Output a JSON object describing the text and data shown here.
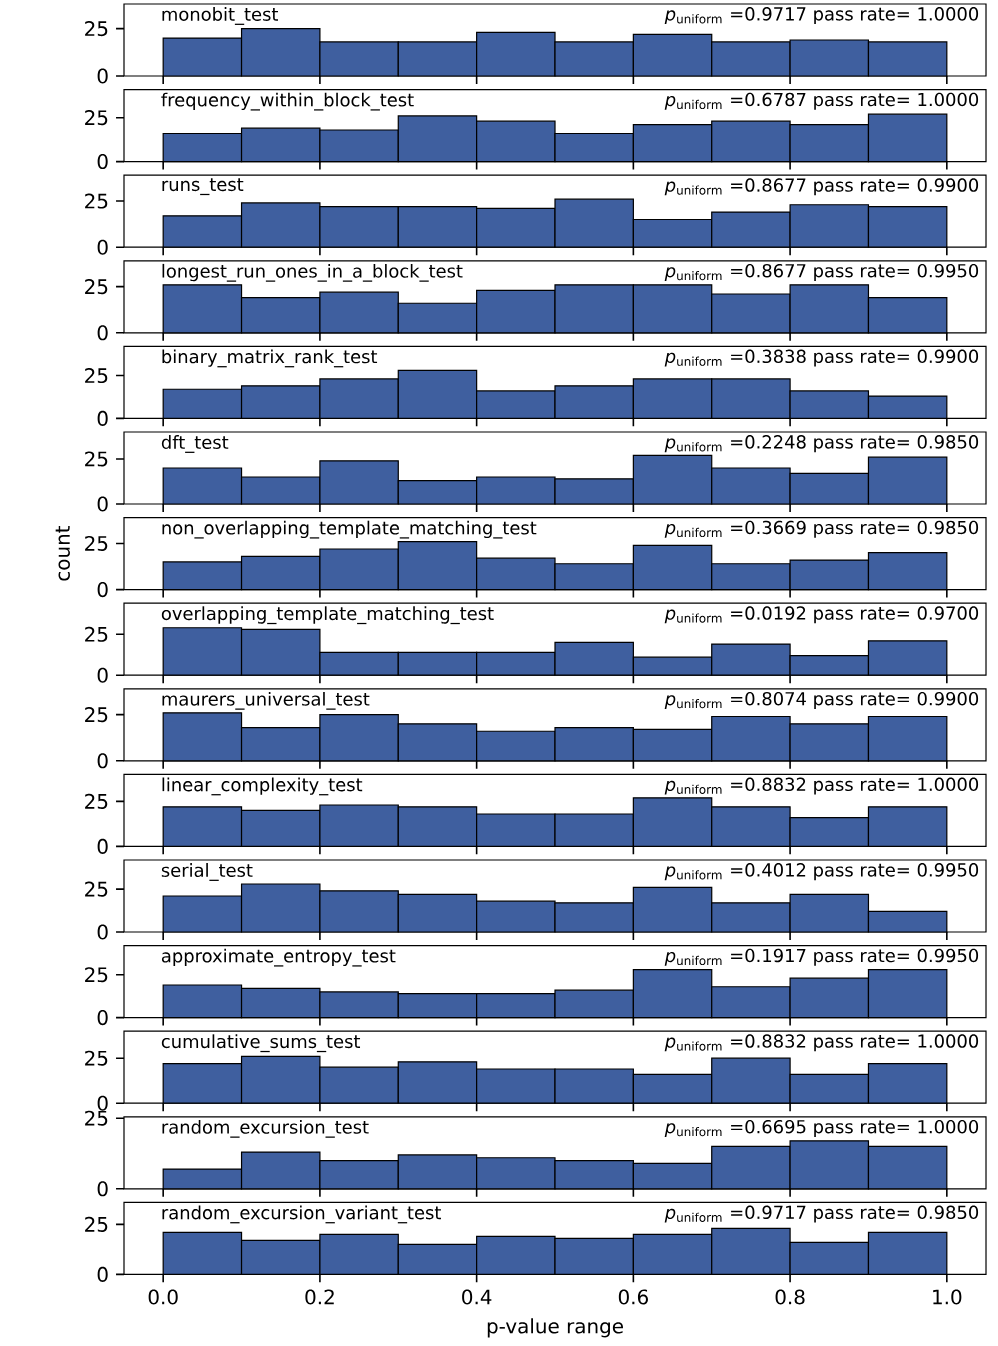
{
  "chart_data": [
    {
      "type": "histogram",
      "title": "monobit_test",
      "annotations": [
        "*p*$_{uniform}$ =0.9717 pass rate= 1.0000"
      ],
      "bins": [
        0,
        0.1,
        0.2,
        0.3,
        0.4,
        0.5,
        0.6,
        0.7,
        0.8,
        0.9,
        1.0
      ],
      "values": [
        20,
        25,
        18,
        18,
        23,
        18,
        22,
        18,
        19,
        18
      ],
      "color": "#3f5f9f",
      "xlim": [
        -0.05,
        1.05
      ],
      "ylim": [
        0,
        38
      ],
      "yticks": [
        0,
        25
      ],
      "xticks": [
        0,
        0.2,
        0.4,
        0.6,
        0.8,
        1
      ],
      "tick_labels": "y"
    },
    {
      "type": "histogram",
      "title": "frequency_within_block_test",
      "annotations": [
        "*p*$_{uniform}$ =0.6787 pass rate= 1.0000"
      ],
      "bins": [
        0,
        0.1,
        0.2,
        0.3,
        0.4,
        0.5,
        0.6,
        0.7,
        0.8,
        0.9,
        1.0
      ],
      "values": [
        16,
        19,
        18,
        26,
        23,
        16,
        21,
        23,
        21,
        27
      ],
      "color": "#3f5f9f",
      "xlim": [
        -0.05,
        1.05
      ],
      "ylim": [
        0,
        41
      ],
      "yticks": [
        0,
        25
      ],
      "xticks": [
        0,
        0.2,
        0.4,
        0.6,
        0.8,
        1
      ],
      "tick_labels": "y"
    },
    {
      "type": "histogram",
      "title": "runs_test",
      "annotations": [
        "*p*$_{uniform}$ =0.8677 pass rate= 0.9900"
      ],
      "bins": [
        0,
        0.1,
        0.2,
        0.3,
        0.4,
        0.5,
        0.6,
        0.7,
        0.8,
        0.9,
        1.0
      ],
      "values": [
        17,
        24,
        22,
        22,
        21,
        26,
        15,
        19,
        23,
        22
      ],
      "color": "#3f5f9f",
      "xlim": [
        -0.05,
        1.05
      ],
      "ylim": [
        0,
        39
      ],
      "yticks": [
        0,
        25
      ],
      "xticks": [
        0,
        0.2,
        0.4,
        0.6,
        0.8,
        1
      ],
      "tick_labels": "y"
    },
    {
      "type": "histogram",
      "title": "longest_run_ones_in_a_block_test",
      "annotations": [
        "*p*$_{uniform}$ =0.8677 pass rate= 0.9950"
      ],
      "bins": [
        0,
        0.1,
        0.2,
        0.3,
        0.4,
        0.5,
        0.6,
        0.7,
        0.8,
        0.9,
        1.0
      ],
      "values": [
        26,
        19,
        22,
        16,
        23,
        26,
        26,
        21,
        26,
        19
      ],
      "color": "#3f5f9f",
      "xlim": [
        -0.05,
        1.05
      ],
      "ylim": [
        0,
        39
      ],
      "yticks": [
        0,
        25
      ],
      "xticks": [
        0,
        0.2,
        0.4,
        0.6,
        0.8,
        1
      ],
      "tick_labels": "y"
    },
    {
      "type": "histogram",
      "title": "binary_matrix_rank_test",
      "annotations": [
        "*p*$_{uniform}$ =0.3838 pass rate= 0.9900"
      ],
      "bins": [
        0,
        0.1,
        0.2,
        0.3,
        0.4,
        0.5,
        0.6,
        0.7,
        0.8,
        0.9,
        1.0
      ],
      "values": [
        17,
        19,
        23,
        28,
        16,
        19,
        23,
        23,
        16,
        13
      ],
      "color": "#3f5f9f",
      "xlim": [
        -0.05,
        1.05
      ],
      "ylim": [
        0,
        42
      ],
      "yticks": [
        0,
        25
      ],
      "xticks": [
        0,
        0.2,
        0.4,
        0.6,
        0.8,
        1
      ],
      "tick_labels": "y"
    },
    {
      "type": "histogram",
      "title": "dft_test",
      "annotations": [
        "*p*$_{uniform}$ =0.2248 pass rate= 0.9850"
      ],
      "bins": [
        0,
        0.1,
        0.2,
        0.3,
        0.4,
        0.5,
        0.6,
        0.7,
        0.8,
        0.9,
        1.0
      ],
      "values": [
        20,
        15,
        24,
        13,
        15,
        14,
        27,
        20,
        17,
        26
      ],
      "color": "#3f5f9f",
      "xlim": [
        -0.05,
        1.05
      ],
      "ylim": [
        0,
        40
      ],
      "yticks": [
        0,
        25
      ],
      "xticks": [
        0,
        0.2,
        0.4,
        0.6,
        0.8,
        1
      ],
      "tick_labels": "y"
    },
    {
      "type": "histogram",
      "title": "non_overlapping_template_matching_test",
      "ylabel": "count",
      "annotations": [
        "*p*$_{uniform}$ =0.3669 pass rate= 0.9850"
      ],
      "bins": [
        0,
        0.1,
        0.2,
        0.3,
        0.4,
        0.5,
        0.6,
        0.7,
        0.8,
        0.9,
        1.0
      ],
      "values": [
        15,
        18,
        22,
        26,
        17,
        14,
        24,
        14,
        16,
        20
      ],
      "color": "#3f5f9f",
      "xlim": [
        -0.05,
        1.05
      ],
      "ylim": [
        0,
        39
      ],
      "yticks": [
        0,
        25
      ],
      "xticks": [
        0,
        0.2,
        0.4,
        0.6,
        0.8,
        1
      ],
      "tick_labels": "y"
    },
    {
      "type": "histogram",
      "title": "overlapping_template_matching_test",
      "annotations": [
        "*p*$_{uniform}$ =0.0192 pass rate= 0.9700"
      ],
      "bins": [
        0,
        0.1,
        0.2,
        0.3,
        0.4,
        0.5,
        0.6,
        0.7,
        0.8,
        0.9,
        1.0
      ],
      "values": [
        29,
        28,
        14,
        14,
        14,
        20,
        11,
        19,
        12,
        21
      ],
      "color": "#3f5f9f",
      "xlim": [
        -0.05,
        1.05
      ],
      "ylim": [
        0,
        44
      ],
      "yticks": [
        0,
        25
      ],
      "xticks": [
        0,
        0.2,
        0.4,
        0.6,
        0.8,
        1
      ],
      "tick_labels": "y"
    },
    {
      "type": "histogram",
      "title": "maurers_universal_test",
      "annotations": [
        "*p*$_{uniform}$ =0.8074 pass rate= 0.9900"
      ],
      "bins": [
        0,
        0.1,
        0.2,
        0.3,
        0.4,
        0.5,
        0.6,
        0.7,
        0.8,
        0.9,
        1.0
      ],
      "values": [
        26,
        18,
        25,
        20,
        16,
        18,
        17,
        24,
        20,
        24
      ],
      "color": "#3f5f9f",
      "xlim": [
        -0.05,
        1.05
      ],
      "ylim": [
        0,
        39
      ],
      "yticks": [
        0,
        25
      ],
      "xticks": [
        0,
        0.2,
        0.4,
        0.6,
        0.8,
        1
      ],
      "tick_labels": "y"
    },
    {
      "type": "histogram",
      "title": "linear_complexity_test",
      "annotations": [
        "*p*$_{uniform}$ =0.8832 pass rate= 1.0000"
      ],
      "bins": [
        0,
        0.1,
        0.2,
        0.3,
        0.4,
        0.5,
        0.6,
        0.7,
        0.8,
        0.9,
        1.0
      ],
      "values": [
        22,
        20,
        23,
        22,
        18,
        18,
        27,
        22,
        16,
        22
      ],
      "color": "#3f5f9f",
      "xlim": [
        -0.05,
        1.05
      ],
      "ylim": [
        0,
        40
      ],
      "yticks": [
        0,
        25
      ],
      "xticks": [
        0,
        0.2,
        0.4,
        0.6,
        0.8,
        1
      ],
      "tick_labels": "y"
    },
    {
      "type": "histogram",
      "title": "serial_test",
      "annotations": [
        "*p*$_{uniform}$ =0.4012 pass rate= 0.9950"
      ],
      "bins": [
        0,
        0.1,
        0.2,
        0.3,
        0.4,
        0.5,
        0.6,
        0.7,
        0.8,
        0.9,
        1.0
      ],
      "values": [
        21,
        28,
        24,
        22,
        18,
        17,
        26,
        17,
        22,
        12
      ],
      "color": "#3f5f9f",
      "xlim": [
        -0.05,
        1.05
      ],
      "ylim": [
        0,
        42
      ],
      "yticks": [
        0,
        25
      ],
      "xticks": [
        0,
        0.2,
        0.4,
        0.6,
        0.8,
        1
      ],
      "tick_labels": "y"
    },
    {
      "type": "histogram",
      "title": "approximate_entropy_test",
      "annotations": [
        "*p*$_{uniform}$ =0.1917 pass rate= 0.9950"
      ],
      "bins": [
        0,
        0.1,
        0.2,
        0.3,
        0.4,
        0.5,
        0.6,
        0.7,
        0.8,
        0.9,
        1.0
      ],
      "values": [
        19,
        17,
        15,
        14,
        14,
        16,
        28,
        18,
        23,
        28
      ],
      "color": "#3f5f9f",
      "xlim": [
        -0.05,
        1.05
      ],
      "ylim": [
        0,
        42
      ],
      "yticks": [
        0,
        25
      ],
      "xticks": [
        0,
        0.2,
        0.4,
        0.6,
        0.8,
        1
      ],
      "tick_labels": "y"
    },
    {
      "type": "histogram",
      "title": "cumulative_sums_test",
      "annotations": [
        "*p*$_{uniform}$ =0.8832 pass rate= 1.0000"
      ],
      "bins": [
        0,
        0.1,
        0.2,
        0.3,
        0.4,
        0.5,
        0.6,
        0.7,
        0.8,
        0.9,
        1.0
      ],
      "values": [
        22,
        26,
        20,
        23,
        19,
        19,
        16,
        25,
        16,
        22
      ],
      "color": "#3f5f9f",
      "xlim": [
        -0.05,
        1.05
      ],
      "ylim": [
        0,
        40
      ],
      "yticks": [
        0,
        25
      ],
      "xticks": [
        0,
        0.2,
        0.4,
        0.6,
        0.8,
        1
      ],
      "tick_labels": "y"
    },
    {
      "type": "histogram",
      "title": "random_excursion_test",
      "annotations": [
        "*p*$_{uniform}$ =0.6695 pass rate= 1.0000"
      ],
      "bins": [
        0,
        0.1,
        0.2,
        0.3,
        0.4,
        0.5,
        0.6,
        0.7,
        0.8,
        0.9,
        1.0
      ],
      "values": [
        7,
        13,
        10,
        12,
        11,
        10,
        9,
        15,
        17,
        15
      ],
      "color": "#3f5f9f",
      "xlim": [
        -0.05,
        1.05
      ],
      "ylim": [
        0,
        25.5
      ],
      "yticks": [
        0,
        25
      ],
      "xticks": [
        0,
        0.2,
        0.4,
        0.6,
        0.8,
        1
      ],
      "tick_labels": "y"
    },
    {
      "type": "histogram",
      "title": "random_excursion_variant_test",
      "xlabel": "p-value range",
      "annotations": [
        "*p*$_{uniform}$ =0.9717 pass rate= 0.9850"
      ],
      "bins": [
        0,
        0.1,
        0.2,
        0.3,
        0.4,
        0.5,
        0.6,
        0.7,
        0.8,
        0.9,
        1.0
      ],
      "values": [
        21,
        17,
        20,
        15,
        19,
        18,
        20,
        23,
        16,
        21
      ],
      "color": "#3f5f9f",
      "xlim": [
        -0.05,
        1.05
      ],
      "ylim": [
        0,
        36
      ],
      "yticks": [
        0,
        25
      ],
      "xticks": [
        {
          "value": 0,
          "label": "0.0"
        },
        0.2,
        0.4,
        0.6,
        0.8,
        {
          "value": 1,
          "label": "1.0"
        }
      ]
    }
  ]
}
